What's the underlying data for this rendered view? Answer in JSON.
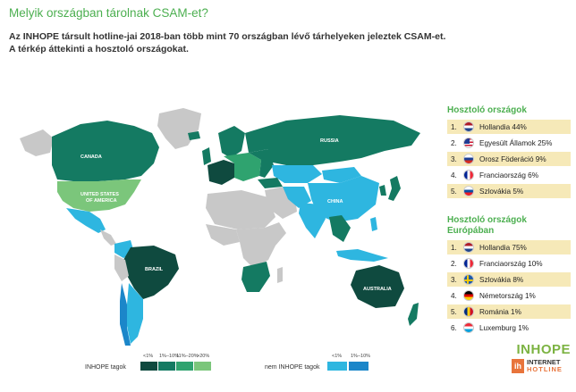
{
  "header": {
    "title": "Melyik országban tárolnak CSAM-et?",
    "subtitle_line1": "Az INHOPE társult hotline-jai 2018-ban több mint 70 országban lévő tárhelyeken jeleztek CSAM-et.",
    "subtitle_line2": "A térkép áttekinti a hosztoló országokat."
  },
  "map": {
    "labels": {
      "canada": "CANADA",
      "usa_line1": "UNITED STATES",
      "usa_line2": "OF AMERICA",
      "russia": "RUSSIA",
      "china": "CHINA",
      "brazil": "BRAZIL",
      "australia": "AUSTRALIA"
    },
    "colors": {
      "very_dark_green": "#0f4a3f",
      "dark_green": "#147a62",
      "mid_green": "#2fa36f",
      "light_green": "#7bc67b",
      "light_blue": "#2eb6e0",
      "blue": "#1b86c9",
      "grey": "#c8c8c8"
    }
  },
  "hosting": {
    "title": "Hosztoló országok",
    "items": [
      {
        "rank": "1.",
        "label": "Hollandia 44%",
        "flag": "nl"
      },
      {
        "rank": "2.",
        "label": "Egyesült Államok 25%",
        "flag": "us"
      },
      {
        "rank": "3.",
        "label": "Orosz Föderáció 9%",
        "flag": "ru"
      },
      {
        "rank": "4.",
        "label": "Franciaország 6%",
        "flag": "fr"
      },
      {
        "rank": "5.",
        "label": "Szlovákia 5%",
        "flag": "sk"
      }
    ]
  },
  "europe": {
    "title_line1": "Hosztoló országok",
    "title_line2": "Európában",
    "items": [
      {
        "rank": "1.",
        "label": "Hollandia 75%",
        "flag": "nl"
      },
      {
        "rank": "2.",
        "label": "Franciaország 10%",
        "flag": "fr"
      },
      {
        "rank": "3.",
        "label": "Szlovákia 8%",
        "flag": "se"
      },
      {
        "rank": "4.",
        "label": "Németország 1%",
        "flag": "de"
      },
      {
        "rank": "5.",
        "label": "Románia 1%",
        "flag": "ro"
      },
      {
        "rank": "6.",
        "label": "Luxemburg 1%",
        "flag": "lu"
      }
    ]
  },
  "legend": {
    "members_label": "INHOPE tagok",
    "members_ticks": [
      "<1%",
      "1%–10%",
      "11%–20%",
      ">20%"
    ],
    "nonmembers_label": "nem INHOPE tagok",
    "nonmembers_ticks": [
      "<1%",
      "1%–10%"
    ]
  },
  "brand": {
    "inhope": "INHOPE",
    "ih_badge": "ih",
    "internet": "INTERNET",
    "hotline": "HOTLINE"
  }
}
